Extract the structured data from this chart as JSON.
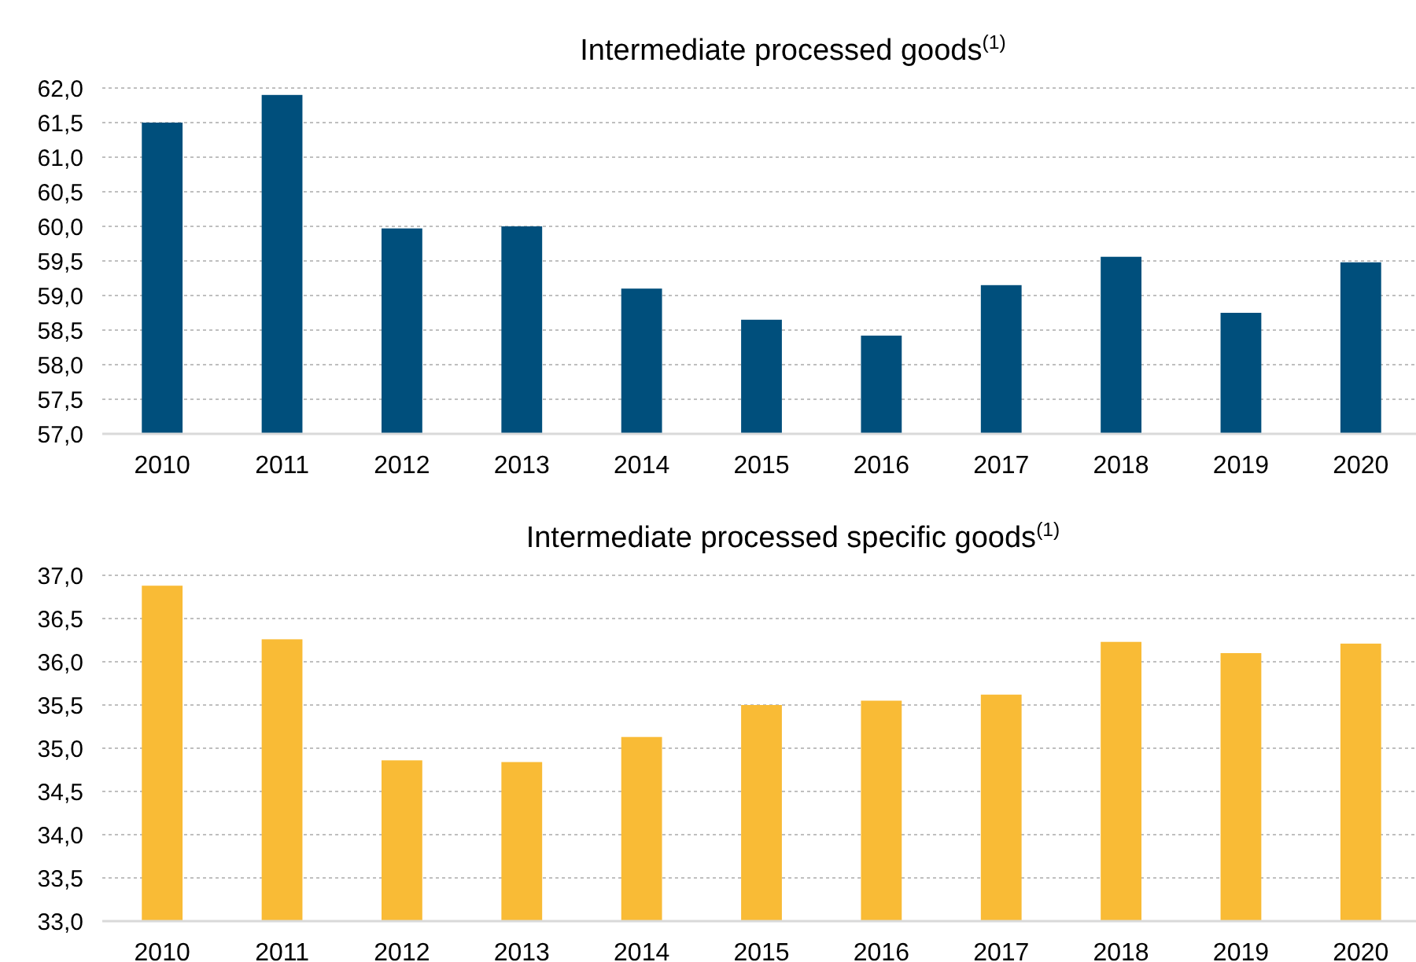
{
  "chart_data": [
    {
      "type": "bar",
      "title": "Intermediate processed goods$^{(1)}$",
      "categories": [
        "2010",
        "2011",
        "2012",
        "2013",
        "2014",
        "2015",
        "2016",
        "2017",
        "2018",
        "2019",
        "2020"
      ],
      "values": [
        61.5,
        61.9,
        59.97,
        60.0,
        59.1,
        58.65,
        58.42,
        59.15,
        59.56,
        58.75,
        59.48
      ],
      "color": "#004f7c",
      "ylim": [
        57,
        62
      ],
      "yticks": [
        {
          "value": 57,
          "label": "57,0"
        },
        {
          "value": 57.5,
          "label": "57,5"
        },
        {
          "value": 58,
          "label": "58,0"
        },
        {
          "value": 58.5,
          "label": "58,5"
        },
        {
          "value": 59,
          "label": "59,0"
        },
        {
          "value": 59.5,
          "label": "59,5"
        },
        {
          "value": 60,
          "label": "60,0"
        },
        {
          "value": 60.5,
          "label": "60,5"
        },
        {
          "value": 61,
          "label": "61,0"
        },
        {
          "value": 61.5,
          "label": "61,5"
        },
        {
          "value": 62,
          "label": "62,0"
        }
      ],
      "grid": "y"
    },
    {
      "type": "bar",
      "title": "Intermediate processed specific goods$^{(1)}$",
      "categories": [
        "2010",
        "2011",
        "2012",
        "2013",
        "2014",
        "2015",
        "2016",
        "2017",
        "2018",
        "2019",
        "2020"
      ],
      "values": [
        36.88,
        36.26,
        34.86,
        34.84,
        35.13,
        35.5,
        35.55,
        35.62,
        36.23,
        36.1,
        36.21
      ],
      "color": "#f9bb36",
      "ylim": [
        33,
        37
      ],
      "yticks": [
        {
          "value": 33,
          "label": "33,0"
        },
        {
          "value": 33.5,
          "label": "33,5"
        },
        {
          "value": 34,
          "label": "34,0"
        },
        {
          "value": 34.5,
          "label": "34,5"
        },
        {
          "value": 35,
          "label": "35,0"
        },
        {
          "value": 35.5,
          "label": "35,5"
        },
        {
          "value": 36,
          "label": "36,0"
        },
        {
          "value": 36.5,
          "label": "36,5"
        },
        {
          "value": 37,
          "label": "37,0"
        }
      ],
      "grid": "y"
    }
  ]
}
